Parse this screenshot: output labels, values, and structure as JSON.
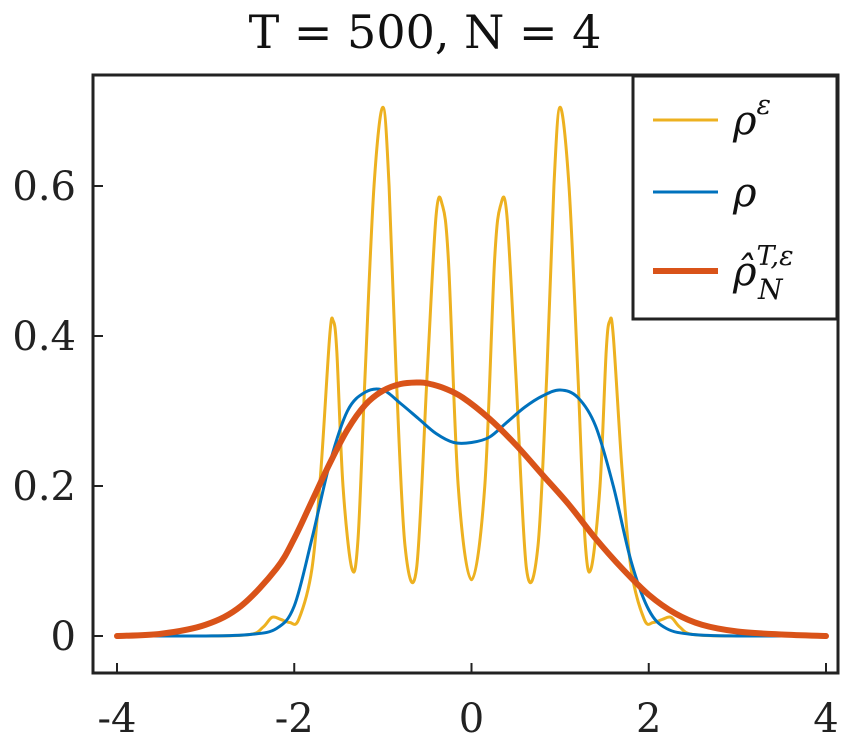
{
  "chart_data": {
    "type": "line",
    "title": "T = 500, N = 4",
    "xlabel": "",
    "ylabel": "",
    "xlim": [
      -4,
      4
    ],
    "ylim": [
      -0.05,
      0.75
    ],
    "xticks": [
      -4,
      -2,
      0,
      2,
      4
    ],
    "xtick_labels": [
      "-4",
      "-2",
      "0",
      "2",
      "4"
    ],
    "yticks": [
      0,
      0.2,
      0.4,
      0.6
    ],
    "ytick_labels": [
      "0",
      "0.2",
      "0.4",
      "0.6"
    ],
    "grid": false,
    "legend_position": "top-right",
    "series": [
      {
        "name": "ρ^ε",
        "legend_base": "ρ",
        "legend_sup": "ε",
        "legend_sub": "",
        "color": "#EDB120",
        "style": "thin",
        "x": [
          -4.0,
          -3.0,
          -2.5,
          -2.35,
          -2.25,
          -2.15,
          -2.05,
          -1.95,
          -1.8,
          -1.7,
          -1.6,
          -1.56,
          -1.52,
          -1.45,
          -1.35,
          -1.28,
          -1.2,
          -1.1,
          -1.0,
          -0.93,
          -0.85,
          -0.75,
          -0.62,
          -0.5,
          -0.4,
          -0.33,
          -0.26,
          -0.15,
          0.0,
          0.15,
          0.26,
          0.33,
          0.4,
          0.5,
          0.62,
          0.75,
          0.85,
          0.93,
          1.0,
          1.1,
          1.2,
          1.28,
          1.35,
          1.45,
          1.52,
          1.56,
          1.6,
          1.7,
          1.8,
          1.95,
          2.05,
          2.15,
          2.25,
          2.35,
          2.5,
          3.0,
          4.0
        ],
        "y": [
          0.0,
          0.0,
          0.002,
          0.012,
          0.025,
          0.022,
          0.018,
          0.022,
          0.09,
          0.22,
          0.4,
          0.42,
          0.38,
          0.2,
          0.09,
          0.13,
          0.35,
          0.6,
          0.705,
          0.6,
          0.35,
          0.12,
          0.09,
          0.35,
          0.56,
          0.575,
          0.5,
          0.2,
          0.075,
          0.2,
          0.5,
          0.575,
          0.56,
          0.35,
          0.09,
          0.12,
          0.35,
          0.6,
          0.705,
          0.6,
          0.35,
          0.13,
          0.09,
          0.2,
          0.38,
          0.42,
          0.4,
          0.22,
          0.09,
          0.022,
          0.018,
          0.022,
          0.025,
          0.012,
          0.002,
          0.0,
          0.0
        ]
      },
      {
        "name": "ρ",
        "legend_base": "ρ",
        "legend_sup": "",
        "legend_sub": "",
        "color": "#0072BD",
        "style": "thin",
        "x": [
          -4.0,
          -3.0,
          -2.5,
          -2.2,
          -2.0,
          -1.8,
          -1.6,
          -1.4,
          -1.2,
          -1.0,
          -0.8,
          -0.6,
          -0.4,
          -0.2,
          0.0,
          0.2,
          0.4,
          0.6,
          0.8,
          1.0,
          1.2,
          1.4,
          1.6,
          1.8,
          2.0,
          2.2,
          2.5,
          3.0,
          4.0
        ],
        "y": [
          0.0,
          0.0,
          0.002,
          0.01,
          0.04,
          0.13,
          0.23,
          0.3,
          0.325,
          0.328,
          0.31,
          0.29,
          0.27,
          0.258,
          0.258,
          0.265,
          0.285,
          0.305,
          0.32,
          0.328,
          0.318,
          0.28,
          0.2,
          0.1,
          0.035,
          0.01,
          0.002,
          0.0,
          0.0
        ]
      },
      {
        "name": "ρ̂_N^{T,ε}",
        "legend_base": "ρ̂",
        "legend_sup": "T,ε",
        "legend_sub": "N",
        "color": "#D95319",
        "style": "thick",
        "x": [
          -4.0,
          -3.5,
          -3.0,
          -2.6,
          -2.2,
          -2.0,
          -1.8,
          -1.6,
          -1.4,
          -1.2,
          -1.0,
          -0.8,
          -0.6,
          -0.5,
          -0.3,
          -0.1,
          0.2,
          0.5,
          0.8,
          1.1,
          1.4,
          1.7,
          2.0,
          2.3,
          2.6,
          3.0,
          3.5,
          4.0
        ],
        "y": [
          0.0,
          0.003,
          0.015,
          0.04,
          0.09,
          0.13,
          0.18,
          0.23,
          0.275,
          0.308,
          0.327,
          0.336,
          0.338,
          0.337,
          0.33,
          0.318,
          0.29,
          0.255,
          0.215,
          0.175,
          0.13,
          0.09,
          0.055,
          0.03,
          0.015,
          0.006,
          0.002,
          0.0
        ]
      }
    ]
  }
}
